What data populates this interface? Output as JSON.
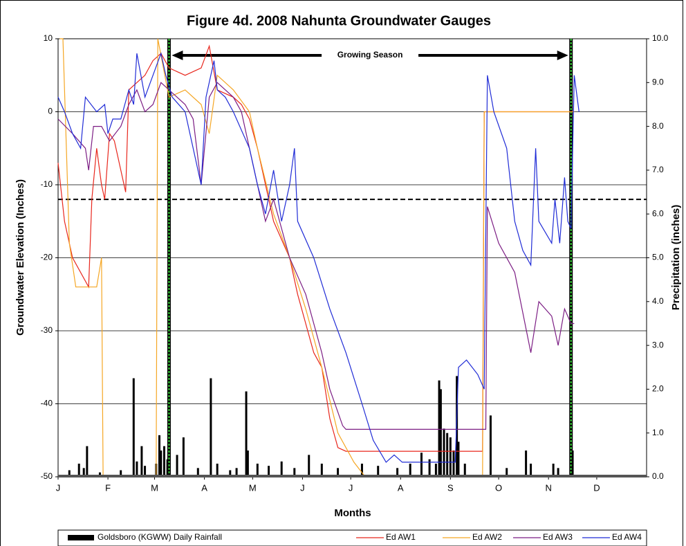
{
  "chart_data": {
    "type": "line",
    "title": "Figure 4d.  2008 Nahunta Groundwater Gauges",
    "x_label": "Months",
    "y_label": "Groundwater Elevation (Inches)",
    "y2_label": "Precipitation (inches)",
    "annotation": "Growing Season",
    "growing_season": [
      70,
      320
    ],
    "threshold": -12,
    "xlim": [
      1,
      367
    ],
    "xticks": [
      {
        "value": 1,
        "label": "J"
      },
      {
        "value": 32,
        "label": "F"
      },
      {
        "value": 61,
        "label": "M"
      },
      {
        "value": 92,
        "label": "A"
      },
      {
        "value": 122,
        "label": "M"
      },
      {
        "value": 153,
        "label": "J"
      },
      {
        "value": 183,
        "label": "J"
      },
      {
        "value": 214,
        "label": "A"
      },
      {
        "value": 245,
        "label": "S"
      },
      {
        "value": 275,
        "label": "O"
      },
      {
        "value": 306,
        "label": "N"
      },
      {
        "value": 336,
        "label": "D"
      }
    ],
    "ylim": [
      -50,
      10
    ],
    "yticks": [
      -50,
      -40,
      -30,
      -20,
      -10,
      0,
      10
    ],
    "y2lim": [
      0,
      10
    ],
    "y2ticks": [
      {
        "value": 0,
        "label": "0.0"
      },
      {
        "value": 1,
        "label": "1.0"
      },
      {
        "value": 2,
        "label": "2.0"
      },
      {
        "value": 3,
        "label": "3.0"
      },
      {
        "value": 4,
        "label": "4.0"
      },
      {
        "value": 5,
        "label": "5.0"
      },
      {
        "value": 6,
        "label": "6.0"
      },
      {
        "value": 7,
        "label": "7.0"
      },
      {
        "value": 8,
        "label": "8.0"
      },
      {
        "value": 9,
        "label": "9.0"
      },
      {
        "value": 10,
        "label": "10.0"
      }
    ],
    "grid": true,
    "series": [
      {
        "name": "Goldsboro (KGWW) Daily Rainfall",
        "type": "bar",
        "axis": "y2",
        "color": "#000000",
        "x": [
          8,
          14,
          17,
          19,
          27,
          40,
          48,
          50,
          53,
          55,
          62,
          64,
          65,
          67,
          69,
          75,
          79,
          88,
          96,
          100,
          108,
          112,
          118,
          119,
          125,
          132,
          140,
          148,
          157,
          165,
          175,
          190,
          200,
          212,
          220,
          227,
          232,
          236,
          238,
          239,
          241,
          243,
          245,
          247,
          249,
          250,
          254,
          270,
          280,
          292,
          295,
          309,
          312,
          321
        ],
        "values": [
          0.15,
          0.3,
          0.2,
          0.7,
          0.1,
          0.15,
          2.25,
          0.35,
          0.7,
          0.25,
          0.3,
          0.95,
          0.6,
          0.7,
          0.4,
          0.5,
          0.9,
          0.2,
          2.25,
          0.3,
          0.15,
          0.2,
          1.95,
          0.6,
          0.3,
          0.25,
          0.35,
          0.2,
          0.5,
          0.3,
          0.2,
          0.3,
          0.25,
          0.2,
          0.3,
          0.55,
          0.4,
          0.3,
          2.2,
          2.0,
          1.1,
          1.0,
          0.9,
          0.6,
          2.3,
          0.8,
          0.3,
          1.4,
          0.2,
          0.6,
          0.3,
          0.3,
          0.2,
          0.6
        ]
      },
      {
        "name": "Ed AW1",
        "color": "#e8261c",
        "x": [
          1,
          5,
          10,
          20,
          22,
          25,
          28,
          30,
          33,
          36,
          40,
          43,
          45,
          50,
          55,
          60,
          65,
          70,
          80,
          90,
          95,
          100,
          110,
          115,
          120,
          125,
          135,
          145,
          150,
          160,
          165,
          170,
          175,
          180,
          265,
          266,
          322
        ],
        "values": [
          -7,
          -15,
          -20,
          -24,
          -12,
          -5,
          -10,
          -12,
          -3,
          -4,
          -8,
          -11,
          3,
          4,
          5,
          7,
          8,
          6,
          5,
          6,
          9,
          3,
          2,
          1,
          -1,
          -5,
          -15,
          -20,
          -25,
          -33,
          -35,
          -42,
          -46,
          -46.5,
          -46.5,
          0,
          0
        ]
      },
      {
        "name": "Ed AW2",
        "color": "#f5a623",
        "x": [
          2,
          4,
          8,
          12,
          25,
          28,
          29,
          62,
          63,
          70,
          80,
          90,
          95,
          100,
          110,
          120,
          125,
          135,
          145,
          155,
          165,
          175,
          185,
          192,
          265,
          266,
          322
        ],
        "values": [
          10,
          10,
          -18,
          -24,
          -24,
          -20,
          -50,
          -50,
          10,
          2,
          3,
          1,
          -3,
          5,
          3,
          0,
          -5,
          -14,
          -20,
          -27,
          -35,
          -44,
          -48,
          -50,
          -50,
          0,
          0
        ]
      },
      {
        "name": "Ed AW3",
        "color": "#7b1c83",
        "x": [
          1,
          10,
          18,
          20,
          23,
          28,
          33,
          40,
          45,
          50,
          55,
          60,
          65,
          70,
          80,
          85,
          90,
          95,
          100,
          110,
          115,
          120,
          125,
          130,
          135,
          145,
          155,
          165,
          170,
          178,
          180,
          267,
          268,
          275,
          285,
          295,
          300,
          308,
          312,
          316,
          320,
          322
        ],
        "values": [
          -1,
          -3,
          -5,
          -8,
          -2,
          -2,
          -4,
          -2,
          1,
          3,
          0,
          1,
          4,
          3,
          1,
          -1,
          -10,
          2,
          4,
          2,
          0,
          -5,
          -10,
          -15,
          -12,
          -20,
          -25,
          -33,
          -38,
          -43,
          -43.5,
          -43.5,
          -13,
          -18,
          -22,
          -33,
          -26,
          -28,
          -32,
          -27,
          -29,
          -29
        ]
      },
      {
        "name": "Ed AW4",
        "color": "#1f2bd6",
        "x": [
          1,
          5,
          10,
          15,
          18,
          25,
          30,
          32,
          35,
          40,
          45,
          48,
          50,
          55,
          60,
          65,
          68,
          72,
          80,
          85,
          90,
          93,
          98,
          100,
          105,
          110,
          120,
          125,
          130,
          135,
          140,
          145,
          148,
          150,
          160,
          170,
          180,
          190,
          197,
          205,
          210,
          215,
          248,
          250,
          255,
          262,
          266,
          268,
          272,
          280,
          285,
          290,
          295,
          298,
          300,
          308,
          310,
          313,
          316,
          318,
          320,
          322,
          325
        ],
        "values": [
          2,
          0,
          -3,
          -5,
          2,
          0,
          1,
          -3,
          -1,
          -1,
          3,
          1,
          8,
          2,
          5,
          8,
          5,
          2,
          0,
          -5,
          -10,
          2,
          7,
          3,
          2,
          0,
          -5,
          -10,
          -14,
          -8,
          -15,
          -10,
          -5,
          -15,
          -20,
          -27,
          -33,
          -40,
          -45,
          -48,
          -47,
          -48,
          -48,
          -35,
          -34,
          -36,
          -38,
          5,
          0,
          -5,
          -15,
          -19,
          -21,
          -5,
          -15,
          -18,
          -12,
          -18,
          -9,
          -15,
          -16,
          5,
          0
        ]
      }
    ]
  }
}
